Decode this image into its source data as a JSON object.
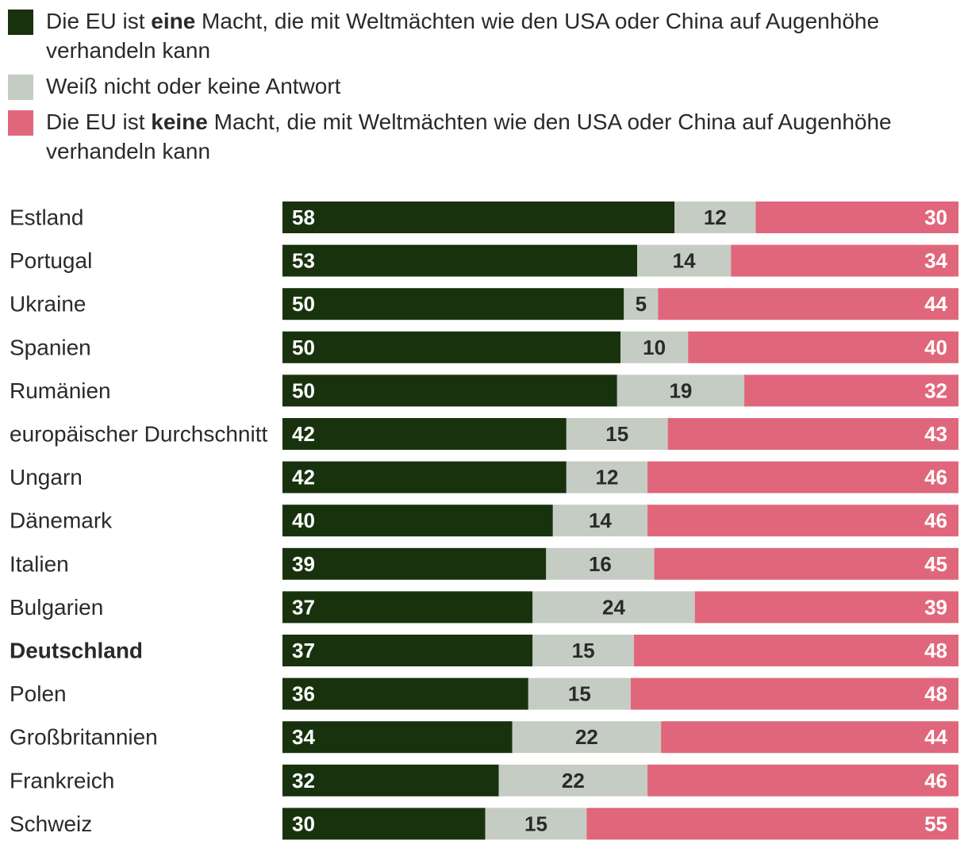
{
  "legend": [
    {
      "pre": "Die EU ist ",
      "bold": "eine",
      "post": " Macht, die mit Weltmächten wie den USA oder China auf Augenhöhe verhandeln kann",
      "color": "#19320e"
    },
    {
      "pre": "Weiß nicht oder keine Antwort",
      "bold": "",
      "post": "",
      "color": "#c5ccc3"
    },
    {
      "pre": "Die EU ist ",
      "bold": "keine",
      "post": " Macht, die mit Weltmächten wie den USA oder China auf Augenhöhe verhandeln kann",
      "color": "#e0677b"
    }
  ],
  "chart_data": {
    "type": "bar",
    "orientation": "horizontal",
    "stacked": true,
    "normalized": true,
    "categories": [
      "Estland",
      "Portugal",
      "Ukraine",
      "Spanien",
      "Rumänien",
      "europäischer Durchschnitt",
      "Ungarn",
      "Dänemark",
      "Italien",
      "Bulgarien",
      "Deutschland",
      "Polen",
      "Großbritannien",
      "Frankreich",
      "Schweiz"
    ],
    "highlight": [
      "Deutschland"
    ],
    "series": [
      {
        "name": "Die EU ist eine Macht, die mit Weltmächten wie den USA oder China auf Augenhöhe verhandeln kann",
        "color": "#19320e",
        "label_color": "#ffffff",
        "label_align": "start",
        "values": [
          58,
          53,
          50,
          50,
          50,
          42,
          42,
          40,
          39,
          37,
          37,
          36,
          34,
          32,
          30
        ]
      },
      {
        "name": "Weiß nicht oder keine Antwort",
        "color": "#c5ccc3",
        "label_color": "#2a2a2a",
        "label_align": "middle",
        "values": [
          12,
          14,
          5,
          10,
          19,
          15,
          12,
          14,
          16,
          24,
          15,
          15,
          22,
          22,
          15
        ]
      },
      {
        "name": "Die EU ist keine Macht, die mit Weltmächten wie den USA oder China auf Augenhöhe verhandeln kann",
        "color": "#e0677b",
        "label_color": "#ffffff",
        "label_align": "end",
        "values": [
          30,
          34,
          44,
          40,
          32,
          43,
          46,
          46,
          45,
          39,
          48,
          48,
          44,
          46,
          55
        ]
      }
    ],
    "title": "",
    "xlabel": "",
    "ylabel": ""
  }
}
